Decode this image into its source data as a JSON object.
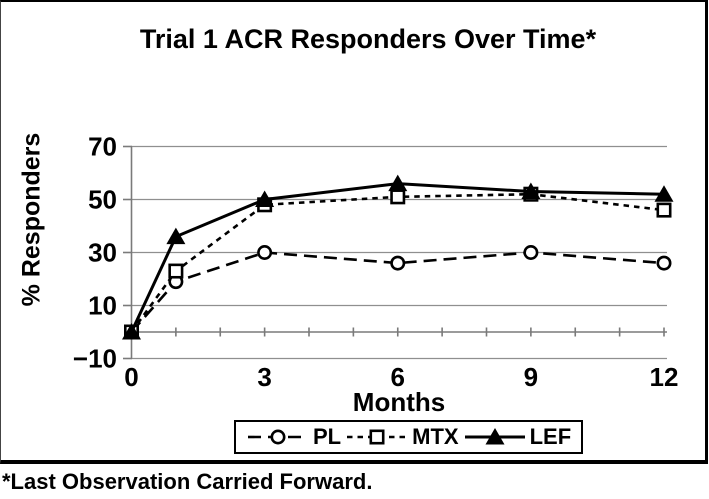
{
  "chart_data": {
    "type": "line",
    "title": "Trial 1 ACR Responders Over Time*",
    "xlabel": "Months",
    "ylabel": "% Responders",
    "footnote": "*Last Observation Carried Forward.",
    "x": [
      0,
      1,
      3,
      6,
      9,
      12
    ],
    "xticks": [
      0,
      3,
      6,
      9,
      12
    ],
    "minor_xticks": [
      1,
      2,
      3,
      4,
      5,
      6,
      7,
      8,
      9,
      10,
      11,
      12
    ],
    "yticks": [
      -10,
      10,
      30,
      50,
      70
    ],
    "xlim": [
      0,
      12
    ],
    "ylim": [
      -10,
      70
    ],
    "grid": "horizontal",
    "legend_position": "bottom-center",
    "colors": {
      "series": "#000000",
      "gridline": "#8f8f8f",
      "axis": "#7a7a7a",
      "background": "#ffffff",
      "text": "#000000"
    },
    "series": [
      {
        "name": "PL",
        "line": "dashed",
        "marker": "open-circle",
        "values": [
          0,
          19,
          30,
          26,
          30,
          26
        ]
      },
      {
        "name": "MTX",
        "line": "dotted",
        "marker": "open-square",
        "values": [
          0,
          23,
          48,
          51,
          52,
          46
        ]
      },
      {
        "name": "LEF",
        "line": "solid",
        "marker": "filled-triangle",
        "values": [
          0,
          36,
          50,
          56,
          53,
          52
        ]
      }
    ]
  }
}
